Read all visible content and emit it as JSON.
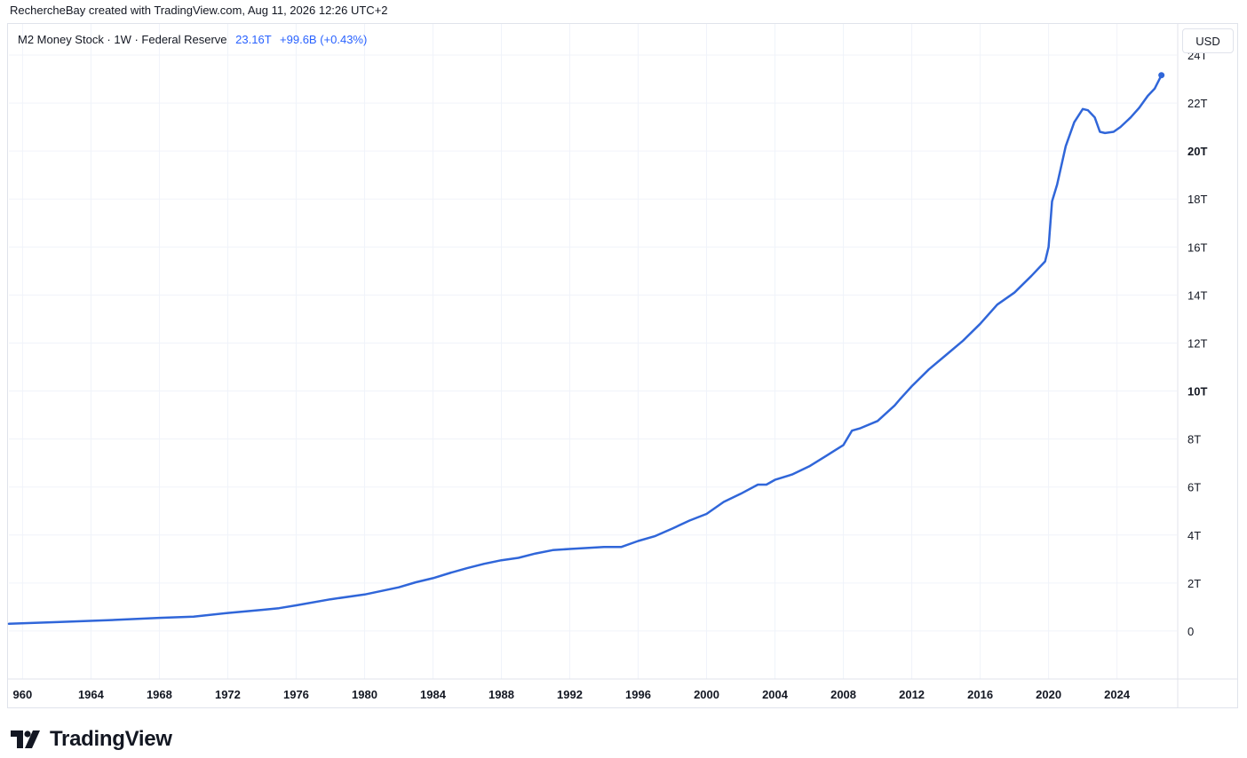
{
  "caption": "RechercheBay created with TradingView.com, Aug 11, 2026 12:26 UTC+2",
  "legend": {
    "symbol": "M2 Money Stock · 1W · Federal Reserve",
    "last_value": "23.16T",
    "change": "+99.6B (+0.43%)"
  },
  "currency_button": "USD",
  "brand": {
    "name": "TradingView",
    "icon": "tradingview-logo-icon"
  },
  "colors": {
    "line": "#3066d9",
    "grid": "#f0f3fa",
    "text": "#131722",
    "accent": "#2962ff"
  },
  "chart_data": {
    "type": "line",
    "title": "M2 Money Stock · 1W · Federal Reserve",
    "xlabel": "",
    "ylabel": "",
    "x_ticks": [
      "960",
      "1964",
      "1968",
      "1972",
      "1976",
      "1980",
      "1984",
      "1988",
      "1992",
      "1996",
      "2000",
      "2004",
      "2008",
      "2012",
      "2016",
      "2020",
      "2024"
    ],
    "y_ticks": [
      "24T",
      "22T",
      "20T",
      "18T",
      "16T",
      "14T",
      "12T",
      "10T",
      "8T",
      "6T",
      "4T",
      "2T",
      "0"
    ],
    "y_bold_ticks": [
      "20T",
      "10T"
    ],
    "xlim": [
      1959.2,
      2027.5
    ],
    "ylim": [
      -2.0,
      24.0
    ],
    "grid": true,
    "legend_position": "top-left",
    "series": [
      {
        "unit": "USD trillions",
        "x": [
          1959.2,
          1962,
          1965,
          1968,
          1970,
          1972,
          1974,
          1975,
          1976,
          1978,
          1980,
          1982,
          1983,
          1984,
          1985,
          1986,
          1987,
          1988,
          1989,
          1990,
          1991,
          1992,
          1993,
          1994,
          1995,
          1996,
          1997,
          1998,
          1999,
          2000,
          2001,
          2002,
          2003,
          2003.5,
          2004,
          2005,
          2006,
          2007,
          2008,
          2008.5,
          2009,
          2010,
          2011,
          2011.3,
          2012,
          2013,
          2014,
          2015,
          2016,
          2017,
          2018,
          2019,
          2019.8,
          2020.0,
          2020.2,
          2020.5,
          2021,
          2021.5,
          2022.0,
          2022.3,
          2022.7,
          2023.0,
          2023.3,
          2023.8,
          2024.2,
          2024.8,
          2025.3,
          2025.8,
          2026.2,
          2026.6
        ],
        "y": [
          0.3,
          0.37,
          0.45,
          0.55,
          0.6,
          0.75,
          0.88,
          0.95,
          1.07,
          1.32,
          1.52,
          1.82,
          2.03,
          2.2,
          2.42,
          2.62,
          2.8,
          2.95,
          3.05,
          3.23,
          3.37,
          3.42,
          3.46,
          3.5,
          3.5,
          3.75,
          3.96,
          4.27,
          4.6,
          4.88,
          5.38,
          5.72,
          6.1,
          6.1,
          6.3,
          6.52,
          6.86,
          7.3,
          7.75,
          8.35,
          8.45,
          8.75,
          9.4,
          9.65,
          10.2,
          10.9,
          11.5,
          12.1,
          12.8,
          13.6,
          14.1,
          14.8,
          15.4,
          16.0,
          17.9,
          18.6,
          20.2,
          21.2,
          21.75,
          21.7,
          21.4,
          20.8,
          20.75,
          20.8,
          21.0,
          21.4,
          21.8,
          22.3,
          22.6,
          23.16
        ]
      }
    ]
  }
}
